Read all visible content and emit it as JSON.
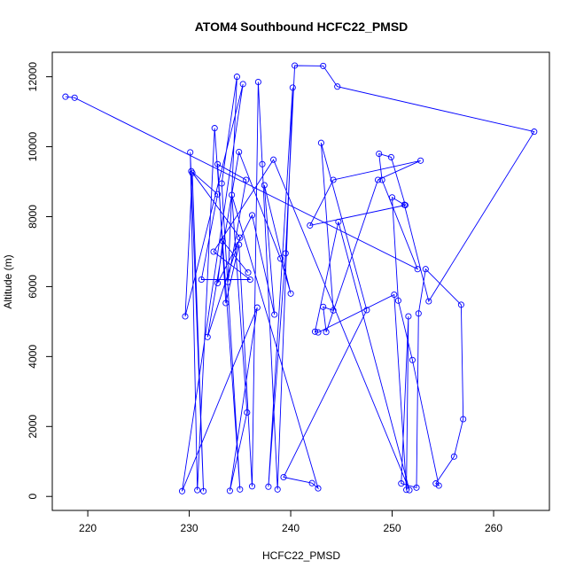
{
  "chart_data": {
    "type": "line",
    "title": "ATOM4 Southbound HCFC22_PMSD",
    "xlabel": "HCFC22_PMSD",
    "ylabel": "Altitude (m)",
    "xlim": [
      216.5,
      265.5
    ],
    "ylim": [
      -400,
      12700
    ],
    "xticks": [
      220,
      230,
      240,
      250,
      260
    ],
    "yticks": [
      0,
      2000,
      4000,
      6000,
      8000,
      10000,
      12000
    ],
    "color": "#0000ff",
    "marker": "open-circle",
    "series": [
      {
        "name": "",
        "points": [
          [
            217.8,
            11430
          ],
          [
            218.7,
            11400
          ],
          [
            252.5,
            6500
          ],
          [
            249.0,
            9050
          ],
          [
            248.7,
            9800
          ],
          [
            249.9,
            9700
          ],
          [
            251.3,
            8330
          ],
          [
            241.9,
            7750
          ],
          [
            244.2,
            9050
          ],
          [
            252.8,
            9600
          ],
          [
            248.6,
            9050
          ],
          [
            243.5,
            4700
          ],
          [
            243.2,
            5420
          ],
          [
            244.2,
            5320
          ],
          [
            243.0,
            10110
          ],
          [
            247.5,
            5330
          ],
          [
            239.3,
            550
          ],
          [
            242.1,
            380
          ],
          [
            242.7,
            230
          ],
          [
            234.2,
            8620
          ],
          [
            235.7,
            2400
          ],
          [
            234.0,
            160
          ],
          [
            236.7,
            5400
          ],
          [
            229.3,
            150
          ],
          [
            235.3,
            11790
          ],
          [
            229.6,
            5150
          ],
          [
            230.3,
            9250
          ],
          [
            231.4,
            150
          ],
          [
            230.1,
            9840
          ],
          [
            230.8,
            180
          ],
          [
            232.5,
            10530
          ],
          [
            235.0,
            200
          ],
          [
            233.2,
            8950
          ],
          [
            234.7,
            12000
          ],
          [
            233.8,
            6130
          ],
          [
            235.6,
            9050
          ],
          [
            232.8,
            9500
          ],
          [
            233.6,
            5530
          ],
          [
            234.9,
            7200
          ],
          [
            236.2,
            290
          ],
          [
            236.8,
            11850
          ],
          [
            237.2,
            9500
          ],
          [
            238.7,
            200
          ],
          [
            240.2,
            11690
          ],
          [
            237.8,
            280
          ],
          [
            239.5,
            6950
          ],
          [
            240.4,
            12320
          ],
          [
            243.2,
            12310
          ],
          [
            244.6,
            11720
          ],
          [
            264.0,
            10430
          ],
          [
            253.6,
            5580
          ],
          [
            251.2,
            8340
          ],
          [
            250.0,
            8550
          ],
          [
            250.6,
            5600
          ],
          [
            252.0,
            3900
          ],
          [
            254.6,
            310
          ],
          [
            254.3,
            370
          ],
          [
            256.1,
            1140
          ],
          [
            257.0,
            2210
          ],
          [
            256.8,
            5480
          ],
          [
            253.3,
            6500
          ],
          [
            252.6,
            5230
          ],
          [
            252.4,
            250
          ],
          [
            250.9,
            370
          ],
          [
            251.6,
            5150
          ],
          [
            251.4,
            190
          ],
          [
            250.2,
            5770
          ],
          [
            242.7,
            4690
          ],
          [
            242.4,
            4710
          ],
          [
            244.7,
            7850
          ],
          [
            251.7,
            180
          ],
          [
            238.3,
            9630
          ],
          [
            232.4,
            7000
          ],
          [
            236.0,
            6200
          ],
          [
            231.2,
            6200
          ],
          [
            232.8,
            8640
          ],
          [
            230.2,
            9300
          ],
          [
            235.0,
            7400
          ],
          [
            231.8,
            4560
          ],
          [
            234.9,
            9850
          ],
          [
            239.0,
            6800
          ],
          [
            240.0,
            5800
          ],
          [
            237.4,
            8900
          ],
          [
            238.4,
            5200
          ],
          [
            236.2,
            8040
          ],
          [
            232.8,
            6100
          ],
          [
            233.3,
            7300
          ],
          [
            235.8,
            6400
          ]
        ]
      }
    ]
  }
}
